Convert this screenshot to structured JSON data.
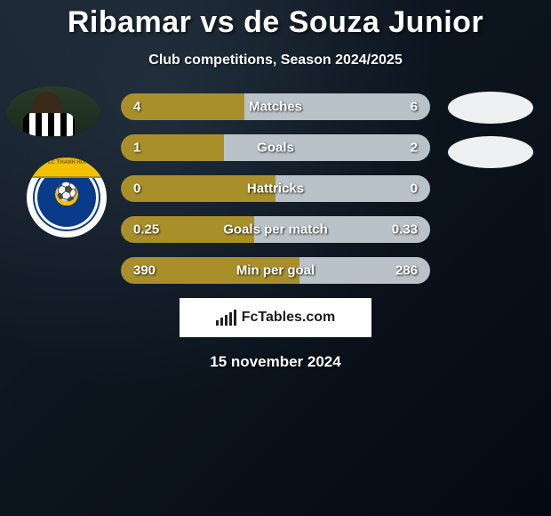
{
  "title": "Ribamar vs de Souza Junior",
  "subtitle": "Club competitions, Season 2024/2025",
  "date": "15 november 2024",
  "footer_label": "FcTables.com",
  "colors": {
    "left": "#a88f2a",
    "right": "#b9c2c8",
    "blob": "#eef0f1"
  },
  "crest_banner": "FLC THANH HOA",
  "footer_bar_heights": [
    6,
    9,
    12,
    15,
    18
  ],
  "rows": [
    {
      "label": "Matches",
      "left_val": "4",
      "right_val": "6",
      "left_pct": 40,
      "right_pct": 60
    },
    {
      "label": "Goals",
      "left_val": "1",
      "right_val": "2",
      "left_pct": 33.3,
      "right_pct": 66.7
    },
    {
      "label": "Hattricks",
      "left_val": "0",
      "right_val": "0",
      "left_pct": 50,
      "right_pct": 50
    },
    {
      "label": "Goals per match",
      "left_val": "0.25",
      "right_val": "0.33",
      "left_pct": 43.1,
      "right_pct": 56.9
    },
    {
      "label": "Min per goal",
      "left_val": "390",
      "right_val": "286",
      "left_pct": 57.7,
      "right_pct": 42.3
    }
  ]
}
